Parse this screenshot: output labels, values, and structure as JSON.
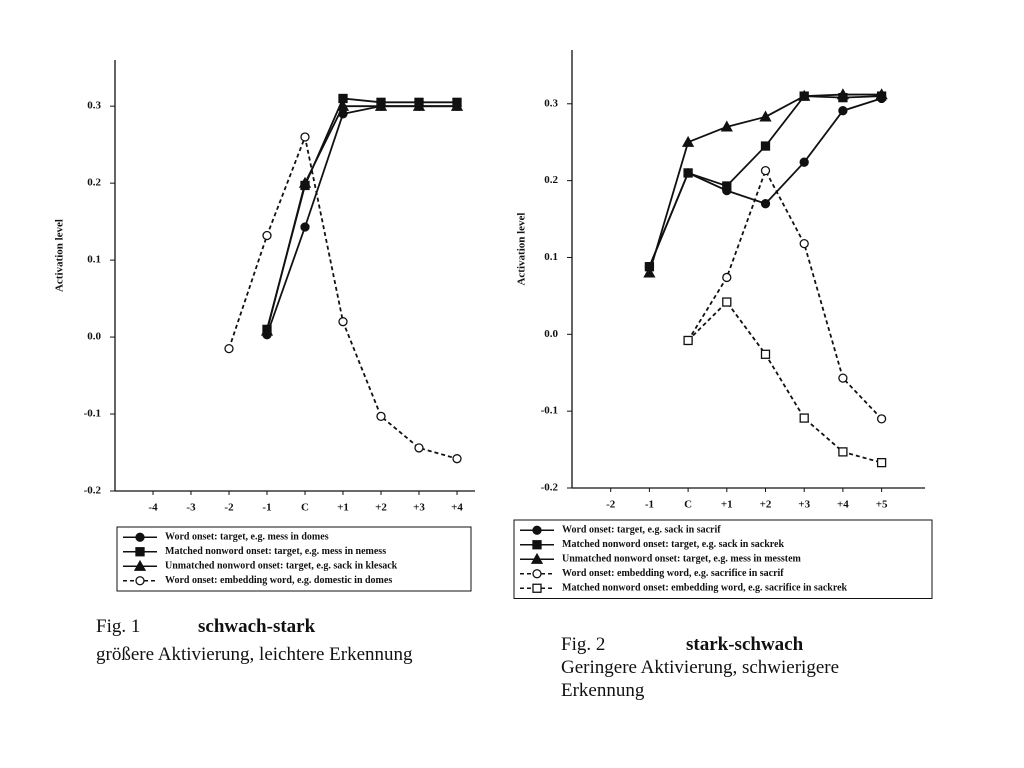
{
  "chart_data": [
    {
      "type": "line",
      "ylabel": "Activation level",
      "categories": [
        "-4",
        "-3",
        "-2",
        "-1",
        "C",
        "+1",
        "+2",
        "+3",
        "+4"
      ],
      "ylim": [
        -0.2,
        0.36
      ],
      "yticks": [
        -0.2,
        -0.1,
        {
          "value": 0,
          "label": "0.0"
        },
        0.1,
        0.2,
        0.3
      ],
      "series": [
        {
          "name": "Word onset: target, e.g. mess in domes",
          "color": "#111",
          "marker": "circle",
          "filled": true,
          "dashed": false,
          "values": [
            null,
            null,
            null,
            0.003,
            0.143,
            0.29,
            0.3,
            0.3,
            0.3
          ]
        },
        {
          "name": "Matched nonword onset: target, e.g. mess in nemess",
          "color": "#111",
          "marker": "square",
          "filled": true,
          "dashed": false,
          "values": [
            null,
            null,
            null,
            0.01,
            0.197,
            0.31,
            0.305,
            0.305,
            0.305
          ]
        },
        {
          "name": "Unmatched nonword onset: target, e.g. sack in klesack",
          "color": "#111",
          "marker": "triangle",
          "filled": true,
          "dashed": false,
          "values": [
            null,
            null,
            null,
            0.008,
            0.2,
            0.3,
            0.3,
            0.3,
            0.3
          ]
        },
        {
          "name": "Word onset: embedding word, e.g. domestic in domes",
          "color": "#111",
          "marker": "circle",
          "filled": false,
          "dashed": true,
          "values": [
            null,
            null,
            -0.015,
            0.132,
            0.26,
            0.02,
            -0.103,
            -0.144,
            -0.158
          ]
        }
      ]
    },
    {
      "type": "line",
      "ylabel": "Activation level",
      "categories": [
        "-2",
        "-1",
        "C",
        "+1",
        "+2",
        "+3",
        "+4",
        "+5"
      ],
      "ylim": [
        -0.2,
        0.37
      ],
      "yticks": [
        -0.2,
        -0.1,
        {
          "value": 0,
          "label": "0.0"
        },
        0.1,
        0.2,
        0.3
      ],
      "series": [
        {
          "name": "Word onset: target, e.g. sack in sacrif",
          "color": "#111",
          "marker": "circle",
          "filled": true,
          "dashed": false,
          "values": [
            null,
            0.088,
            0.21,
            0.187,
            0.17,
            0.224,
            0.291,
            0.307
          ]
        },
        {
          "name": "Matched nonword onset: target, e.g. sack in sackrek",
          "color": "#111",
          "marker": "square",
          "filled": true,
          "dashed": false,
          "values": [
            null,
            0.088,
            0.21,
            0.193,
            0.245,
            0.31,
            0.308,
            0.31
          ]
        },
        {
          "name": "Unmatched nonword onset: target, e.g. mess in messtem",
          "color": "#111",
          "marker": "triangle",
          "filled": true,
          "dashed": false,
          "values": [
            null,
            0.08,
            0.25,
            0.27,
            0.283,
            0.31,
            0.312,
            0.312
          ]
        },
        {
          "name": "Word onset: embedding word, e.g. sacrifice in sacrif",
          "color": "#111",
          "marker": "circle",
          "filled": false,
          "dashed": true,
          "values": [
            null,
            null,
            -0.008,
            0.074,
            0.213,
            0.118,
            -0.057,
            -0.11
          ]
        },
        {
          "name": "Matched nonword onset: embedding word, e.g. sacrifice in sackrek",
          "color": "#111",
          "marker": "square",
          "filled": false,
          "dashed": true,
          "values": [
            null,
            null,
            -0.008,
            0.042,
            -0.026,
            -0.109,
            -0.153,
            -0.167
          ]
        }
      ]
    }
  ],
  "captions": [
    {
      "label": "Fig. 1",
      "title": "schwach-stark",
      "text": "größere Aktivierung, leichtere Erkennung"
    },
    {
      "label": "Fig. 2",
      "title": "stark-schwach",
      "text": "Geringere Aktivierung, schwierigere Erkennung"
    }
  ]
}
